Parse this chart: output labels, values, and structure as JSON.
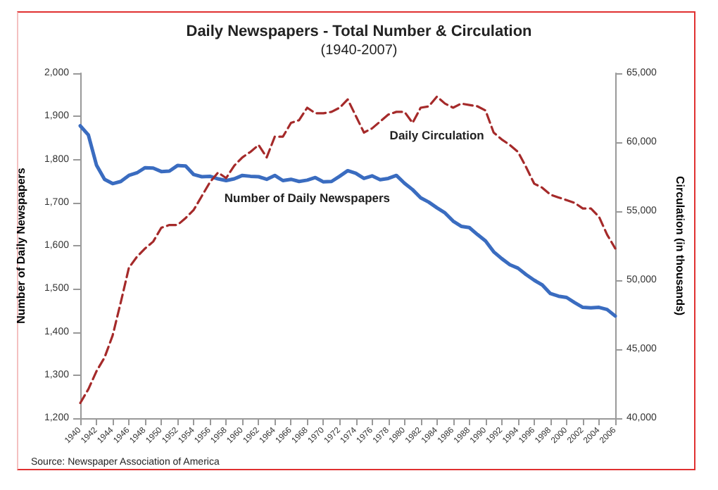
{
  "chart_data": {
    "type": "line",
    "title": "Daily Newspapers - Total Number & Circulation",
    "subtitle": "(1940-2007)",
    "ylabel": "Number of Daily Newspapers",
    "y2label": "Circulation (in thousands)",
    "categories": [
      "1940",
      null,
      "1942",
      null,
      "1944",
      null,
      "1946",
      null,
      "1948",
      null,
      "1950",
      null,
      "1952",
      null,
      "1954",
      null,
      "1956",
      null,
      "1958",
      null,
      "1960",
      null,
      "1962",
      null,
      "1964",
      null,
      "1966",
      null,
      "1968",
      null,
      "1970",
      null,
      "1972",
      null,
      "1974",
      null,
      "1976",
      null,
      "1978",
      null,
      "1980",
      null,
      "1982",
      null,
      "1984",
      null,
      "1986",
      null,
      "1988",
      null,
      "1990",
      null,
      "1992",
      null,
      "1994",
      null,
      "1996",
      null,
      "1998",
      null,
      "2000",
      null,
      "2002",
      null,
      "2004",
      null,
      "2006"
    ],
    "series": [
      {
        "name": "Number of Daily Newspapers",
        "color": "#3a6cc0",
        "line_style": "solid",
        "values": [
          1878,
          1857,
          1787,
          1754,
          1744,
          1749,
          1763,
          1769,
          1781,
          1780,
          1772,
          1773,
          1786,
          1785,
          1765,
          1760,
          1761,
          1755,
          1751,
          1755,
          1763,
          1761,
          1760,
          1754,
          1763,
          1751,
          1754,
          1749,
          1752,
          1758,
          1748,
          1749,
          1761,
          1774,
          1768,
          1756,
          1762,
          1753,
          1756,
          1763,
          1745,
          1730,
          1711,
          1701,
          1688,
          1676,
          1657,
          1645,
          1642,
          1626,
          1611,
          1586,
          1570,
          1556,
          1548,
          1533,
          1520,
          1509,
          1489,
          1483,
          1480,
          1468,
          1457,
          1456,
          1457,
          1452,
          1437
        ]
      },
      {
        "name": "Daily Circulation",
        "color": "#a52a2a",
        "line_style": "dashed",
        "axis": "y2",
        "values": [
          41100,
          42100,
          43400,
          44400,
          46000,
          48400,
          50900,
          51700,
          52300,
          52800,
          53800,
          54000,
          54000,
          54500,
          55100,
          56100,
          57100,
          57800,
          57400,
          58300,
          58900,
          59300,
          59800,
          58900,
          60400,
          60400,
          61400,
          61600,
          62500,
          62100,
          62100,
          62200,
          62500,
          63100,
          61900,
          60700,
          61000,
          61500,
          62000,
          62200,
          62200,
          61400,
          62500,
          62600,
          63300,
          62800,
          62500,
          62800,
          62700,
          62600,
          62300,
          60700,
          60200,
          59800,
          59300,
          58200,
          57000,
          56700,
          56200,
          56000,
          55800,
          55600,
          55200,
          55200,
          54600,
          53300,
          52300
        ]
      }
    ],
    "ylim": [
      1200,
      2000
    ],
    "yticks": [
      {
        "value": 1200,
        "label": "1,200"
      },
      {
        "value": 1300,
        "label": "1,300"
      },
      {
        "value": 1400,
        "label": "1,400"
      },
      {
        "value": 1500,
        "label": "1,500"
      },
      {
        "value": 1600,
        "label": "1,600"
      },
      {
        "value": 1700,
        "label": "1,700"
      },
      {
        "value": 1800,
        "label": "1,800"
      },
      {
        "value": 1900,
        "label": "1,900"
      },
      {
        "value": 2000,
        "label": "2,000"
      }
    ],
    "y2lim": [
      40000,
      65000
    ],
    "y2ticks": [
      {
        "value": 40000,
        "label": "40,000"
      },
      {
        "value": 45000,
        "label": "45,000"
      },
      {
        "value": 50000,
        "label": "50,000"
      },
      {
        "value": 55000,
        "label": "55,000"
      },
      {
        "value": 60000,
        "label": "60,000"
      },
      {
        "value": 65000,
        "label": "65,000"
      }
    ],
    "annotations": [
      "Source: Newspaper Association of America"
    ],
    "grid": false,
    "legend": false,
    "marker": "none"
  }
}
